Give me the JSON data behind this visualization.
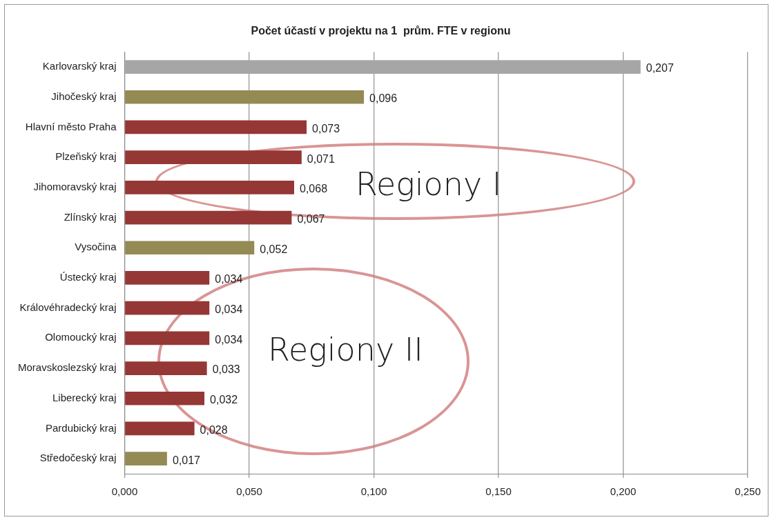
{
  "chart_data": {
    "type": "bar",
    "orientation": "horizontal",
    "title": "Počet účastí v projektu na 1  prům. FTE v regionu",
    "categories": [
      "Karlovarský kraj",
      "Jihočeský kraj",
      "Hlavní město Praha",
      "Plzeňský kraj",
      "Jihomoravský kraj",
      "Zlínský kraj",
      "Vysočina",
      "Ústecký kraj",
      "Královéhradecký kraj",
      "Olomoucký kraj",
      "Moravskoslezský kraj",
      "Liberecký kraj",
      "Pardubický kraj",
      "Středočeský kraj"
    ],
    "values": [
      0.207,
      0.096,
      0.073,
      0.071,
      0.068,
      0.067,
      0.052,
      0.034,
      0.034,
      0.034,
      0.033,
      0.032,
      0.028,
      0.017
    ],
    "colors": [
      "#a6a6a6",
      "#948a54",
      "#953735",
      "#953735",
      "#953735",
      "#953735",
      "#948a54",
      "#953735",
      "#953735",
      "#953735",
      "#953735",
      "#953735",
      "#953735",
      "#948a54"
    ],
    "value_labels": [
      "0,207",
      "0,096",
      "0,073",
      "0,071",
      "0,068",
      "0,067",
      "0,052",
      "0,034",
      "0,034",
      "0,034",
      "0,033",
      "0,032",
      "0,028",
      "0,017"
    ],
    "xlim": [
      0,
      0.25
    ],
    "xticks": [
      {
        "value": 0,
        "label": "0,000"
      },
      {
        "value": 0.05,
        "label": "0,050"
      },
      {
        "value": 0.1,
        "label": "0,100"
      },
      {
        "value": 0.15,
        "label": "0,150"
      },
      {
        "value": 0.2,
        "label": "0,200"
      },
      {
        "value": 0.25,
        "label": "0,250"
      }
    ],
    "grid": "x",
    "legend": false,
    "annotations": [
      "Regiony I",
      "Regiony II"
    ]
  }
}
